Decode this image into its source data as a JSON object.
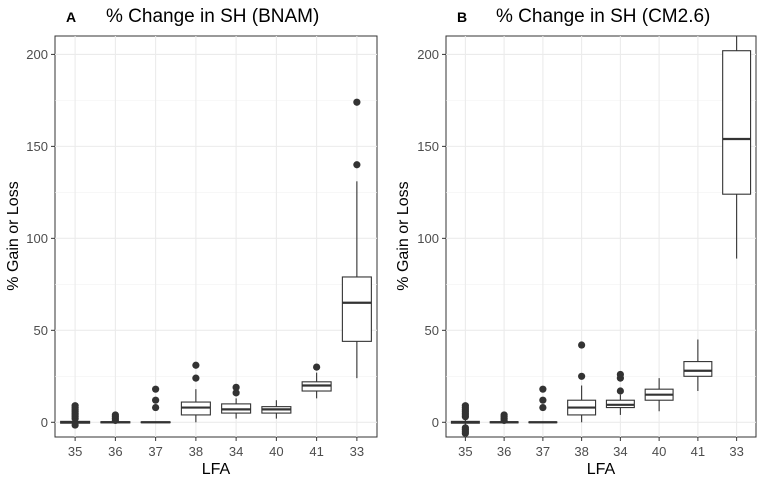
{
  "chart_data": [
    {
      "type": "boxplot",
      "panel_label": "A",
      "title": "% Change in SH (BNAM)",
      "xlabel": "LFA",
      "ylabel": "% Gain or Loss",
      "ylim": [
        -8,
        210
      ],
      "yticks": [
        0,
        50,
        100,
        150,
        200
      ],
      "grid": true,
      "categories": [
        "35",
        "36",
        "37",
        "38",
        "34",
        "40",
        "41",
        "33"
      ],
      "boxes": [
        {
          "category": "35",
          "min": -1,
          "q1": -0.5,
          "median": 0,
          "q3": 0.5,
          "max": 1.5,
          "outliers": [
            2,
            3,
            4,
            5,
            6,
            7,
            8,
            9,
            -1.5
          ]
        },
        {
          "category": "36",
          "min": -0.5,
          "q1": -0.3,
          "median": 0,
          "q3": 0.3,
          "max": 0.5,
          "outliers": [
            1,
            2,
            3,
            4
          ]
        },
        {
          "category": "37",
          "min": -0.3,
          "q1": -0.2,
          "median": 0,
          "q3": 0.2,
          "max": 0.3,
          "outliers": [
            8,
            12,
            18
          ]
        },
        {
          "category": "38",
          "min": 0,
          "q1": 4,
          "median": 8,
          "q3": 11,
          "max": 18,
          "outliers": [
            24,
            31
          ]
        },
        {
          "category": "34",
          "min": 2,
          "q1": 5,
          "median": 7,
          "q3": 10,
          "max": 13,
          "outliers": [
            16,
            19
          ]
        },
        {
          "category": "40",
          "min": 2,
          "q1": 5,
          "median": 7,
          "q3": 8.5,
          "max": 12,
          "outliers": []
        },
        {
          "category": "41",
          "min": 13,
          "q1": 17,
          "median": 20,
          "q3": 22,
          "max": 27,
          "outliers": [
            30
          ]
        },
        {
          "category": "33",
          "min": 24,
          "q1": 44,
          "median": 65,
          "q3": 79,
          "max": 131,
          "outliers": [
            140,
            174
          ]
        }
      ]
    },
    {
      "type": "boxplot",
      "panel_label": "B",
      "title": "% Change in SH (CM2.6)",
      "xlabel": "LFA",
      "ylabel": "% Gain or Loss",
      "ylim": [
        -8,
        210
      ],
      "yticks": [
        0,
        50,
        100,
        150,
        200
      ],
      "grid": true,
      "categories": [
        "35",
        "36",
        "37",
        "38",
        "34",
        "40",
        "41",
        "33"
      ],
      "boxes": [
        {
          "category": "35",
          "min": -2,
          "q1": -0.5,
          "median": 0,
          "q3": 0.5,
          "max": 2,
          "outliers": [
            3,
            4,
            5,
            6,
            7,
            8,
            9,
            -3,
            -4,
            -5,
            -6
          ]
        },
        {
          "category": "36",
          "min": -0.5,
          "q1": -0.3,
          "median": 0,
          "q3": 0.3,
          "max": 0.5,
          "outliers": [
            1,
            2,
            3,
            4
          ]
        },
        {
          "category": "37",
          "min": -0.3,
          "q1": -0.2,
          "median": 0,
          "q3": 0.2,
          "max": 0.3,
          "outliers": [
            8,
            12,
            18
          ]
        },
        {
          "category": "38",
          "min": 0,
          "q1": 4,
          "median": 8,
          "q3": 12,
          "max": 20,
          "outliers": [
            25,
            42
          ]
        },
        {
          "category": "34",
          "min": 4,
          "q1": 8,
          "median": 9.5,
          "q3": 12,
          "max": 15,
          "outliers": [
            17,
            24,
            26
          ]
        },
        {
          "category": "40",
          "min": 6,
          "q1": 12,
          "median": 15,
          "q3": 18,
          "max": 24,
          "outliers": []
        },
        {
          "category": "41",
          "min": 17,
          "q1": 25,
          "median": 28,
          "q3": 33,
          "max": 45,
          "outliers": []
        },
        {
          "category": "33",
          "min": 89,
          "q1": 124,
          "median": 154,
          "q3": 202,
          "max": 215,
          "outliers": []
        }
      ]
    }
  ]
}
